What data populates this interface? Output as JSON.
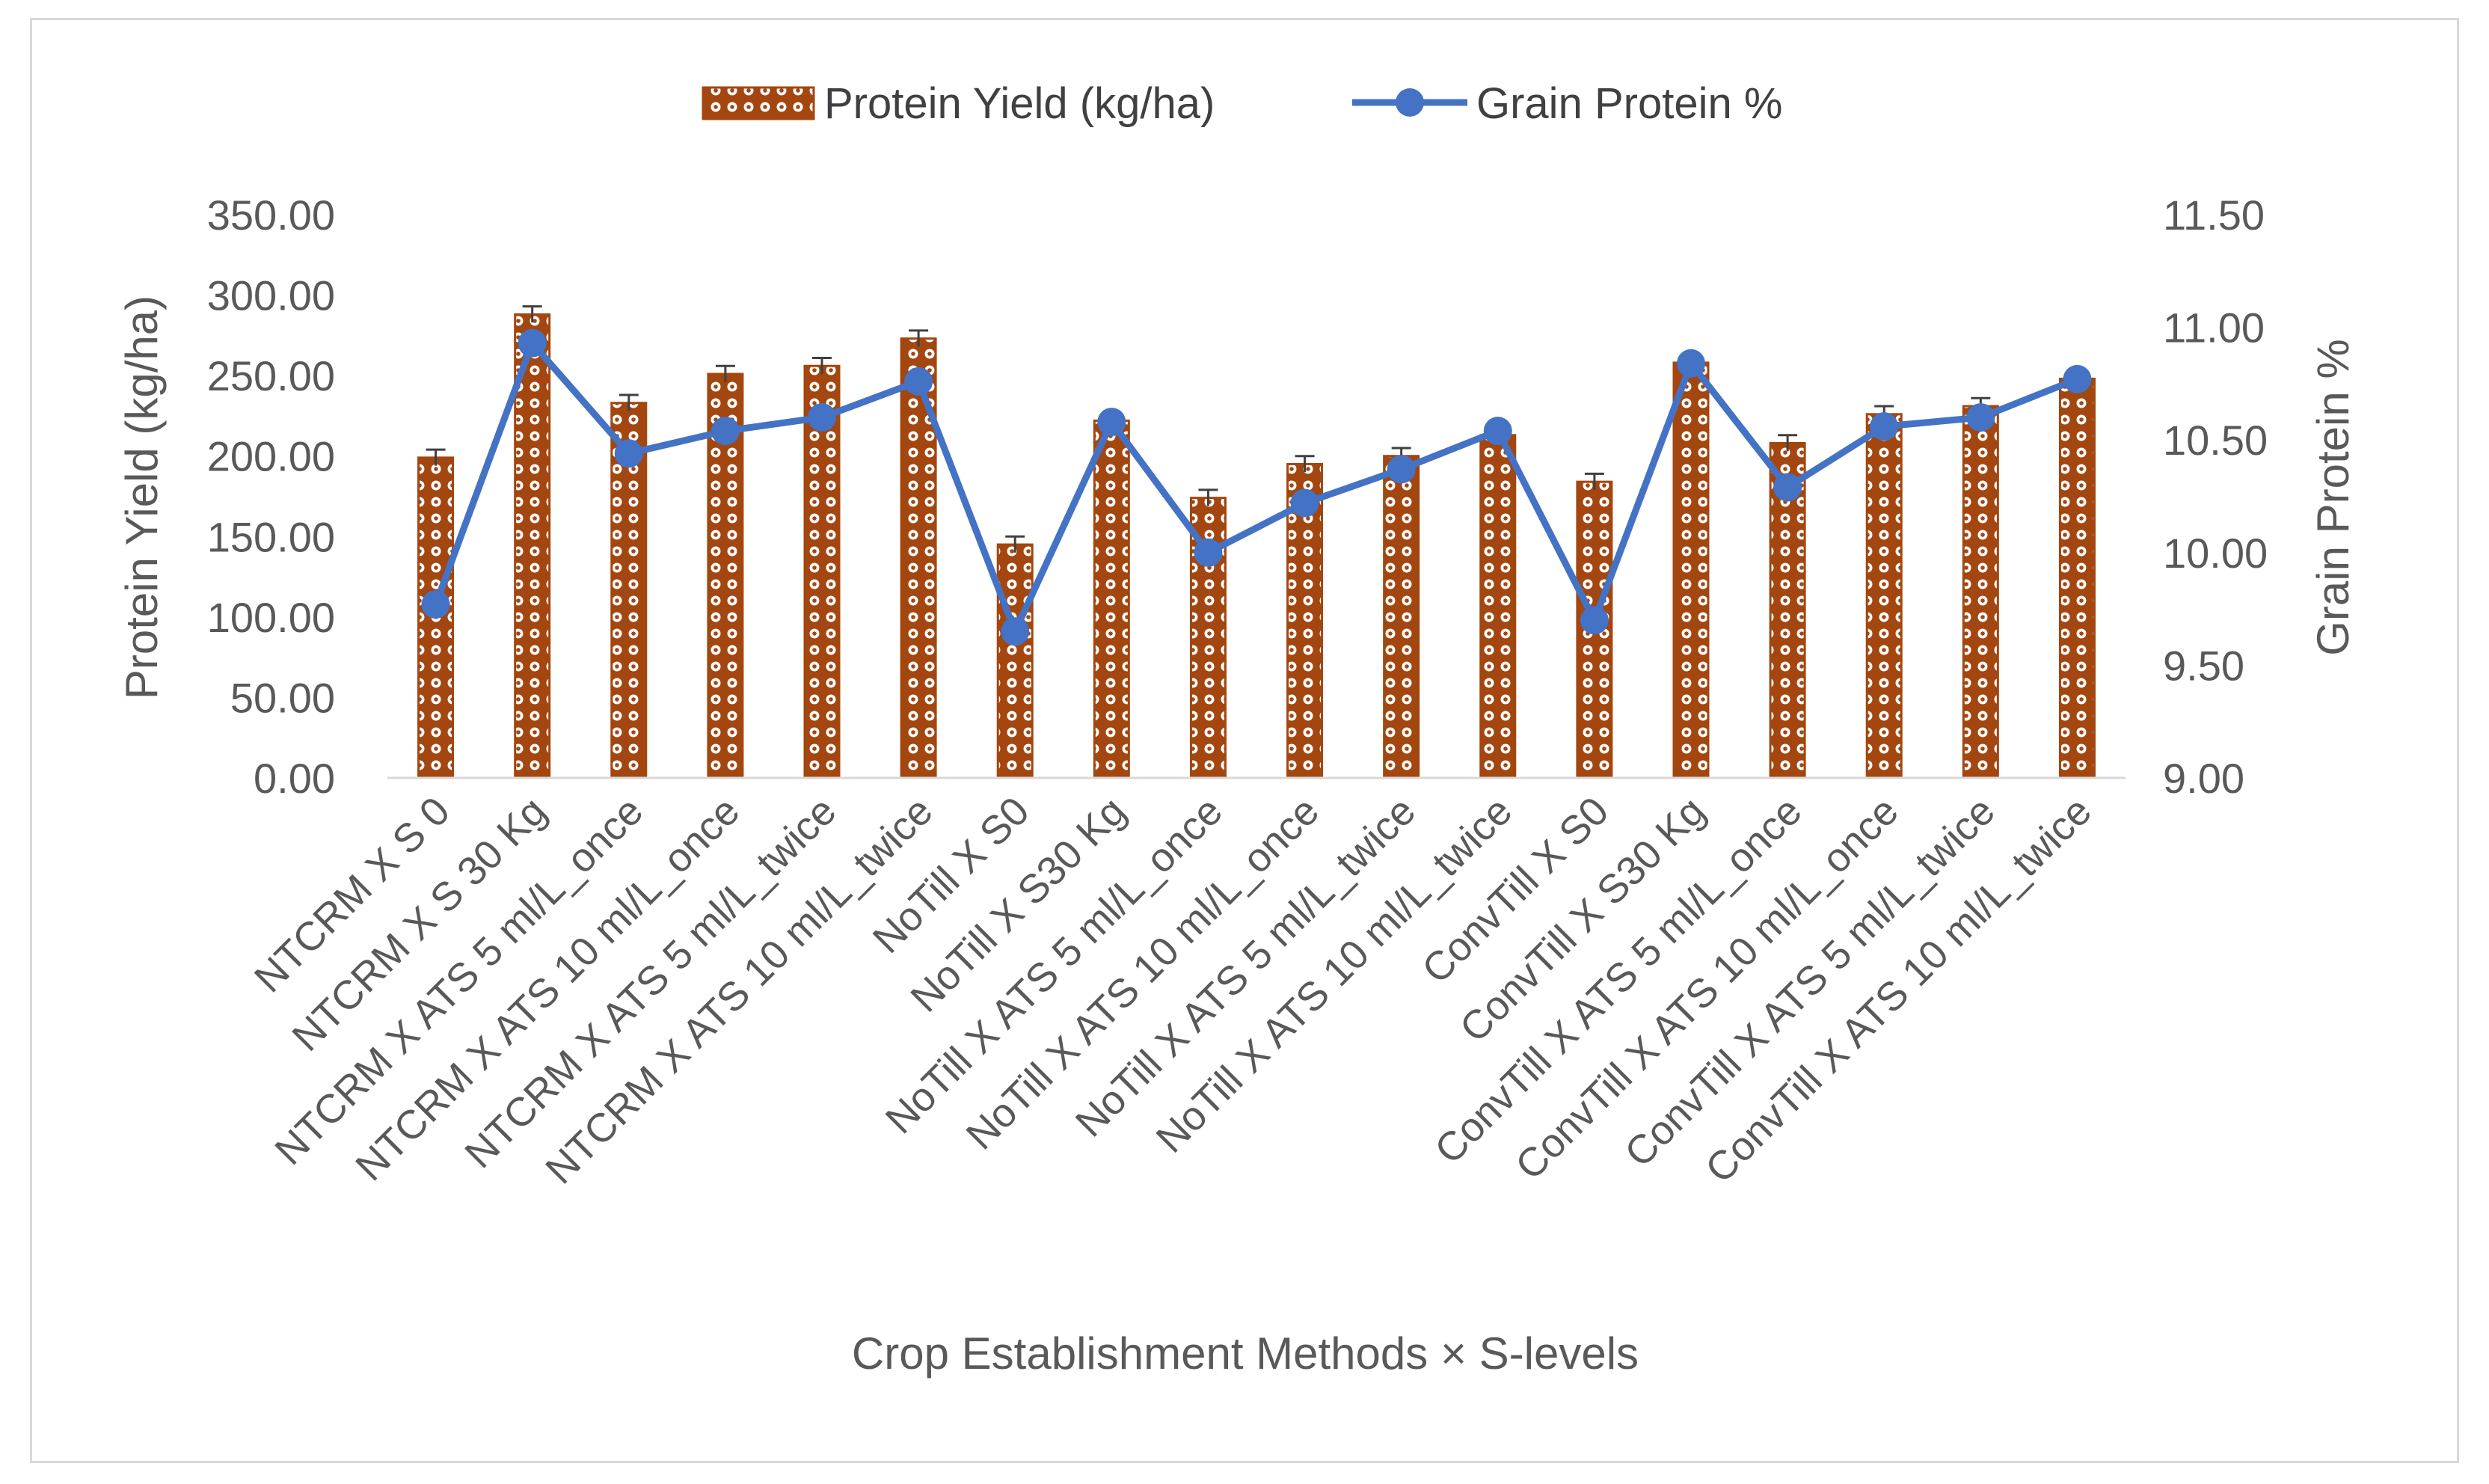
{
  "chart_data": {
    "type": "bar+line",
    "title": "",
    "xlabel": "Crop Establishment Methods × S-levels",
    "ylabel": "Protein Yield (kg/ha)",
    "y2label": "Grain Protein %",
    "ylim": [
      0,
      350
    ],
    "y2lim": [
      9.0,
      11.5
    ],
    "yticks": [
      "0.00",
      "50.00",
      "100.00",
      "150.00",
      "200.00",
      "250.00",
      "300.00",
      "350.00"
    ],
    "y2ticks": [
      "9.00",
      "9.50",
      "10.00",
      "10.50",
      "11.00",
      "11.50"
    ],
    "categories": [
      "NTCRM X S 0",
      "NTCRM X S 30 Kg",
      "NTCRM X ATS 5 ml/L_once",
      "NTCRM X ATS 10 ml/L_once",
      "NTCRM X ATS 5 ml/L_twice",
      "NTCRM X ATS 10 ml/L_twice",
      "NoTill X S0",
      "NoTill X S30 Kg",
      "NoTill X ATS 5 ml/L_once",
      "NoTill X ATS 10 ml/L_once",
      "NoTill X ATS 5 ml/L_twice",
      "NoTill X ATS 10 ml/L_twice",
      "ConvTill X S0",
      "ConvTill X S30 Kg",
      "ConvTill X ATS 5 ml/L_once",
      "ConvTill X ATS 10 ml/L_once",
      "ConvTill X ATS 5 ml/L_twice",
      "ConvTill X ATS 10 ml/L_twice"
    ],
    "series": [
      {
        "name": "Protein Yield (kg/ha)",
        "type": "bar",
        "axis": "left",
        "values": [
          199,
          288,
          233,
          251,
          256,
          273,
          145,
          222,
          174,
          195,
          200,
          213,
          184,
          258,
          208,
          226,
          231,
          248
        ],
        "error": [
          5,
          5,
          5,
          5,
          5,
          5,
          5,
          5,
          5,
          5,
          5,
          5,
          5,
          5,
          5,
          5,
          5,
          5
        ]
      },
      {
        "name": "Grain Protein %",
        "type": "line",
        "axis": "right",
        "values": [
          9.77,
          10.93,
          10.44,
          10.54,
          10.6,
          10.76,
          9.65,
          10.58,
          10.0,
          10.22,
          10.37,
          10.54,
          9.7,
          10.84,
          10.29,
          10.56,
          10.6,
          10.77
        ]
      }
    ],
    "colors": {
      "bar": "#a3460f",
      "bar_pattern": "#ffffff",
      "line": "#4472c4",
      "axis": "#d9d9d9",
      "text": "#595959"
    },
    "legend": {
      "position": "top",
      "bar_label": "Protein Yield (kg/ha)",
      "line_label": "Grain Protein %"
    }
  }
}
